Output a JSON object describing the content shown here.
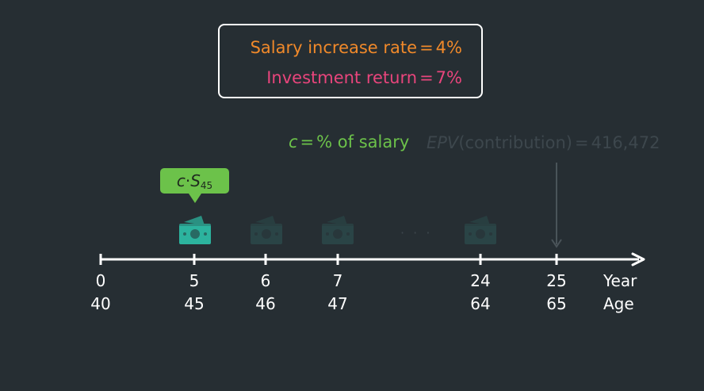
{
  "rates": {
    "salary_label": "Salary increase rate",
    "salary_value": "4%",
    "return_label": "Investment return",
    "return_value": "7%",
    "equals": "="
  },
  "contribution": {
    "symbol": "c",
    "definition": "% of salary"
  },
  "epv": {
    "symbol": "EPV",
    "text": "(contribution)",
    "value": "416,472"
  },
  "bubble": {
    "c": "c",
    "dot": "·",
    "s": "S",
    "sub": "45"
  },
  "timeline": {
    "years": [
      "0",
      "5",
      "6",
      "7",
      "24",
      "25"
    ],
    "ages": [
      "40",
      "45",
      "46",
      "47",
      "64",
      "65"
    ],
    "year_label": "Year",
    "age_label": "Age",
    "ellipsis": "· · ·"
  },
  "colors": {
    "background": "#262e33",
    "salary": "#f0892a",
    "return": "#e8457c",
    "contribution": "#6cc24a",
    "cash_active": "#2cb39e",
    "cash_faded": "#2a4446",
    "muted": "#3d474d"
  },
  "icons": {
    "cash_active": "money-bill-icon",
    "cash_faded": "money-bill-icon",
    "arrow": "down-arrow-icon"
  }
}
